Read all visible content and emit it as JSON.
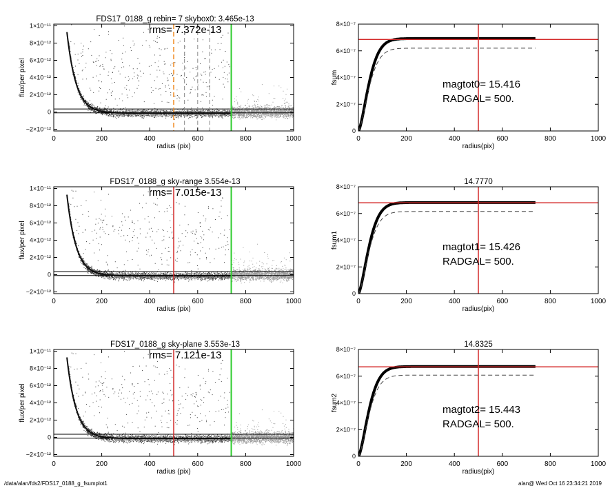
{
  "footer": {
    "path": "/data/alan/fds2/FDS17_0188_g_fsumplot1",
    "user_date": "alan@  Wed Oct 16 23:34:21 2019"
  },
  "colors": {
    "noise_points": "#9a9a9a",
    "source_points": "#3a3a3a",
    "red_line": "#d42a2a",
    "green_line": "#2ecc2e",
    "orange_dashed": "#f08a20",
    "axis": "#000000"
  },
  "chart_data": [
    {
      "type": "scatter",
      "panel": "profile-1",
      "title": "FDS17_0188_g rebin= 7    skybox0:  3.465e-13",
      "rms_label": "rms= 7.372e-13",
      "xlabel": "radius (pix)",
      "ylabel": "flux/per pixel",
      "xlim": [
        0,
        1000
      ],
      "ylim": [
        -2.2e-12,
        1.02e-11
      ],
      "xticks": [
        0,
        200,
        400,
        600,
        800,
        1000
      ],
      "xtick_labels": [
        "0",
        "200",
        "400",
        "600",
        "800",
        "1000"
      ],
      "yticks": [
        1e-11,
        8e-12,
        6e-12,
        4e-12,
        2e-12,
        0,
        -2e-12
      ],
      "ytick_labels": [
        "1×10⁻¹¹",
        "8×10⁻¹²",
        "6×10⁻¹²",
        "4×10⁻¹²",
        "2×10⁻¹²",
        "0",
        "−2×10⁻¹²"
      ],
      "profile_curve": {
        "amplitude": 4e-11,
        "scale": 38,
        "offset": -1.3e-13
      },
      "hlines": [
        3.465e-13,
        -1e-13
      ],
      "markers": {
        "red": null,
        "orange_dashed": 500,
        "green": 740,
        "gray_dashed": [
          545,
          600,
          650
        ]
      }
    },
    {
      "type": "line",
      "panel": "growth-1",
      "title": "",
      "xlabel": "radius(pix)",
      "ylabel": "fsum",
      "xlim": [
        0,
        1000
      ],
      "ylim": [
        0,
        8e-07
      ],
      "xticks": [
        0,
        200,
        400,
        600,
        800,
        1000
      ],
      "xtick_labels": [
        "0",
        "200",
        "400",
        "600",
        "800",
        "1000"
      ],
      "yticks": [
        0,
        2e-07,
        4e-07,
        6e-07,
        8e-07
      ],
      "ytick_labels": [
        "0",
        "2×10⁻⁷",
        "4×10⁻⁷",
        "6×10⁻⁷",
        "8×10⁻⁷"
      ],
      "curve": {
        "total": 6.92e-07,
        "scale": 55,
        "x_max": 740
      },
      "dashed_curve": {
        "total": 6.2e-07,
        "scale": 55,
        "x_max": 740
      },
      "hline": 6.85e-07,
      "vline": 500,
      "annot": [
        "magtot0=  15.416",
        "RADGAL=    500."
      ]
    },
    {
      "type": "scatter",
      "panel": "profile-2",
      "title": "FDS17_0188_g sky-range  3.554e-13",
      "rms_label": "rms= 7.015e-13",
      "xlabel": "radius (pix)",
      "ylabel": "flux/per pixel",
      "xlim": [
        0,
        1000
      ],
      "ylim": [
        -2.2e-12,
        1.02e-11
      ],
      "xticks": [
        0,
        200,
        400,
        600,
        800,
        1000
      ],
      "xtick_labels": [
        "0",
        "200",
        "400",
        "600",
        "800",
        "1000"
      ],
      "yticks": [
        1e-11,
        8e-12,
        6e-12,
        4e-12,
        2e-12,
        0,
        -2e-12
      ],
      "ytick_labels": [
        "1×10⁻¹¹",
        "8×10⁻¹²",
        "6×10⁻¹²",
        "4×10⁻¹²",
        "2×10⁻¹²",
        "0",
        "−2×10⁻¹²"
      ],
      "profile_curve": {
        "amplitude": 4e-11,
        "scale": 38,
        "offset": -1.3e-13
      },
      "hlines": [
        3.554e-13,
        -1e-13
      ],
      "markers": {
        "red": 500,
        "orange_dashed": null,
        "green": 740,
        "gray_dashed": []
      }
    },
    {
      "type": "line",
      "panel": "growth-2",
      "title": "14.7770",
      "xlabel": "radius(pix)",
      "ylabel": "fsum1",
      "xlim": [
        0,
        1000
      ],
      "ylim": [
        0,
        8e-07
      ],
      "xticks": [
        0,
        200,
        400,
        600,
        800,
        1000
      ],
      "xtick_labels": [
        "0",
        "200",
        "400",
        "600",
        "800",
        "1000"
      ],
      "yticks": [
        0,
        2e-07,
        4e-07,
        6e-07,
        8e-07
      ],
      "ytick_labels": [
        "0",
        "2×10⁻⁷",
        "4×10⁻⁷",
        "6×10⁻⁷",
        "8×10⁻⁷"
      ],
      "curve": {
        "total": 6.82e-07,
        "scale": 55,
        "x_max": 740
      },
      "dashed_curve": {
        "total": 6.15e-07,
        "scale": 55,
        "x_max": 740
      },
      "hline": 6.8e-07,
      "vline": 500,
      "annot": [
        "magtot1=  15.426",
        "RADGAL=    500."
      ]
    },
    {
      "type": "scatter",
      "panel": "profile-3",
      "title": "FDS17_0188_g sky-plane  3.553e-13",
      "rms_label": "rms= 7.121e-13",
      "xlabel": "radius (pix)",
      "ylabel": "flux/per pixel",
      "xlim": [
        0,
        1000
      ],
      "ylim": [
        -2.2e-12,
        1.02e-11
      ],
      "xticks": [
        0,
        200,
        400,
        600,
        800,
        1000
      ],
      "xtick_labels": [
        "0",
        "200",
        "400",
        "600",
        "800",
        "1000"
      ],
      "yticks": [
        1e-11,
        8e-12,
        6e-12,
        4e-12,
        2e-12,
        0,
        -2e-12
      ],
      "ytick_labels": [
        "1×10⁻¹¹",
        "8×10⁻¹²",
        "6×10⁻¹²",
        "4×10⁻¹²",
        "2×10⁻¹²",
        "0",
        "−2×10⁻¹²"
      ],
      "profile_curve": {
        "amplitude": 4e-11,
        "scale": 38,
        "offset": -1.3e-13
      },
      "hlines": [
        3.553e-13,
        -1e-13
      ],
      "markers": {
        "red": 500,
        "orange_dashed": null,
        "green": 740,
        "gray_dashed": []
      }
    },
    {
      "type": "line",
      "panel": "growth-3",
      "title": "14.8325",
      "xlabel": "radius(pix)",
      "ylabel": "fsum2",
      "xlim": [
        0,
        1000
      ],
      "ylim": [
        0,
        8e-07
      ],
      "xticks": [
        0,
        200,
        400,
        600,
        800,
        1000
      ],
      "xtick_labels": [
        "0",
        "200",
        "400",
        "600",
        "800",
        "1000"
      ],
      "yticks": [
        0,
        2e-07,
        4e-07,
        6e-07,
        8e-07
      ],
      "ytick_labels": [
        "0",
        "2×10⁻⁷",
        "4×10⁻⁷",
        "6×10⁻⁷",
        "8×10⁻⁷"
      ],
      "curve": {
        "total": 6.72e-07,
        "scale": 55,
        "x_max": 740
      },
      "dashed_curve": {
        "total": 6.08e-07,
        "scale": 55,
        "x_max": 740
      },
      "hline": 6.7e-07,
      "vline": 500,
      "annot": [
        "magtot2=  15.443",
        "RADGAL=    500."
      ]
    }
  ]
}
